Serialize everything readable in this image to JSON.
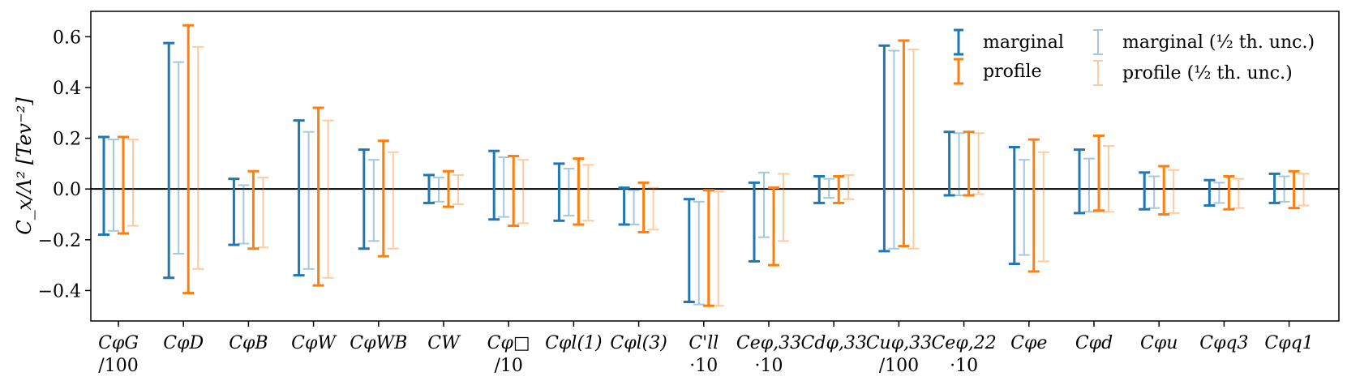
{
  "chart_data": {
    "type": "errorbar",
    "ylabel": "C_x/Λ²   [Tev⁻²]",
    "ylim": [
      -0.52,
      0.7
    ],
    "yticks": [
      -0.4,
      -0.2,
      0.0,
      0.2,
      0.4,
      0.6
    ],
    "ytick_labels": [
      "−0.4",
      "−0.2",
      "0.0",
      "0.2",
      "0.4",
      "0.6"
    ],
    "zero_line": true,
    "legend_position": "top-right",
    "categories": [
      {
        "label": "CφG",
        "scale": "/100"
      },
      {
        "label": "CφD",
        "scale": ""
      },
      {
        "label": "CφB",
        "scale": ""
      },
      {
        "label": "CφW",
        "scale": ""
      },
      {
        "label": "CφWB",
        "scale": ""
      },
      {
        "label": "CW",
        "scale": ""
      },
      {
        "label": "Cφ□",
        "scale": "/10"
      },
      {
        "label": "Cφl(1)",
        "scale": ""
      },
      {
        "label": "Cφl(3)",
        "scale": ""
      },
      {
        "label": "C'll",
        "scale": "·10"
      },
      {
        "label": "Ceφ,33",
        "scale": "·10"
      },
      {
        "label": "Cdφ,33",
        "scale": ""
      },
      {
        "label": "Cuφ,33",
        "scale": "/100"
      },
      {
        "label": "Ceφ,22",
        "scale": "·10"
      },
      {
        "label": "Cφe",
        "scale": ""
      },
      {
        "label": "Cφd",
        "scale": ""
      },
      {
        "label": "Cφu",
        "scale": ""
      },
      {
        "label": "Cφq3",
        "scale": ""
      },
      {
        "label": "Cφq1",
        "scale": ""
      }
    ],
    "series": [
      {
        "name": "marginal",
        "color": "#1f77b4",
        "opacity": 1.0,
        "low": [
          -0.18,
          -0.35,
          -0.22,
          -0.34,
          -0.235,
          -0.055,
          -0.12,
          -0.125,
          -0.14,
          -0.445,
          -0.285,
          -0.055,
          -0.245,
          -0.025,
          -0.295,
          -0.095,
          -0.08,
          -0.065,
          -0.055
        ],
        "high": [
          0.205,
          0.575,
          0.04,
          0.27,
          0.155,
          0.055,
          0.15,
          0.1,
          0.005,
          -0.04,
          0.025,
          0.05,
          0.565,
          0.225,
          0.165,
          0.155,
          0.065,
          0.035,
          0.06
        ]
      },
      {
        "name": "marginal (½ th. unc.)",
        "color": "#1f77b4",
        "opacity": 0.4,
        "low": [
          -0.165,
          -0.255,
          -0.215,
          -0.315,
          -0.205,
          -0.05,
          -0.11,
          -0.105,
          -0.14,
          -0.455,
          -0.19,
          -0.035,
          -0.235,
          -0.025,
          -0.26,
          -0.09,
          -0.075,
          -0.055,
          -0.05
        ],
        "high": [
          0.195,
          0.5,
          0.015,
          0.225,
          0.115,
          0.045,
          0.125,
          0.08,
          -0.005,
          -0.05,
          0.065,
          0.04,
          0.545,
          0.22,
          0.115,
          0.12,
          0.05,
          0.025,
          0.05
        ]
      },
      {
        "name": "profile",
        "color": "#ff7f0e",
        "opacity": 1.0,
        "low": [
          -0.175,
          -0.41,
          -0.235,
          -0.38,
          -0.265,
          -0.07,
          -0.145,
          -0.14,
          -0.17,
          -0.46,
          -0.3,
          -0.055,
          -0.225,
          -0.025,
          -0.325,
          -0.085,
          -0.1,
          -0.08,
          -0.075
        ],
        "high": [
          0.205,
          0.645,
          0.07,
          0.32,
          0.19,
          0.07,
          0.13,
          0.12,
          0.025,
          -0.005,
          0.005,
          0.05,
          0.585,
          0.225,
          0.195,
          0.21,
          0.09,
          0.05,
          0.07
        ]
      },
      {
        "name": "profile (½ th. unc.)",
        "color": "#ff7f0e",
        "opacity": 0.4,
        "low": [
          -0.145,
          -0.315,
          -0.23,
          -0.35,
          -0.235,
          -0.06,
          -0.135,
          -0.125,
          -0.16,
          -0.46,
          -0.205,
          -0.04,
          -0.235,
          -0.02,
          -0.285,
          -0.09,
          -0.095,
          -0.075,
          -0.065
        ],
        "high": [
          0.195,
          0.56,
          0.045,
          0.27,
          0.145,
          0.055,
          0.115,
          0.095,
          0.005,
          -0.01,
          0.06,
          0.055,
          0.55,
          0.22,
          0.145,
          0.17,
          0.075,
          0.04,
          0.06
        ]
      }
    ],
    "legend": [
      {
        "label": "marginal",
        "series": 0
      },
      {
        "label": "profile",
        "series": 2
      },
      {
        "label": "marginal (½ th. unc.)",
        "series": 1
      },
      {
        "label": "profile (½ th. unc.)",
        "series": 3
      }
    ]
  }
}
